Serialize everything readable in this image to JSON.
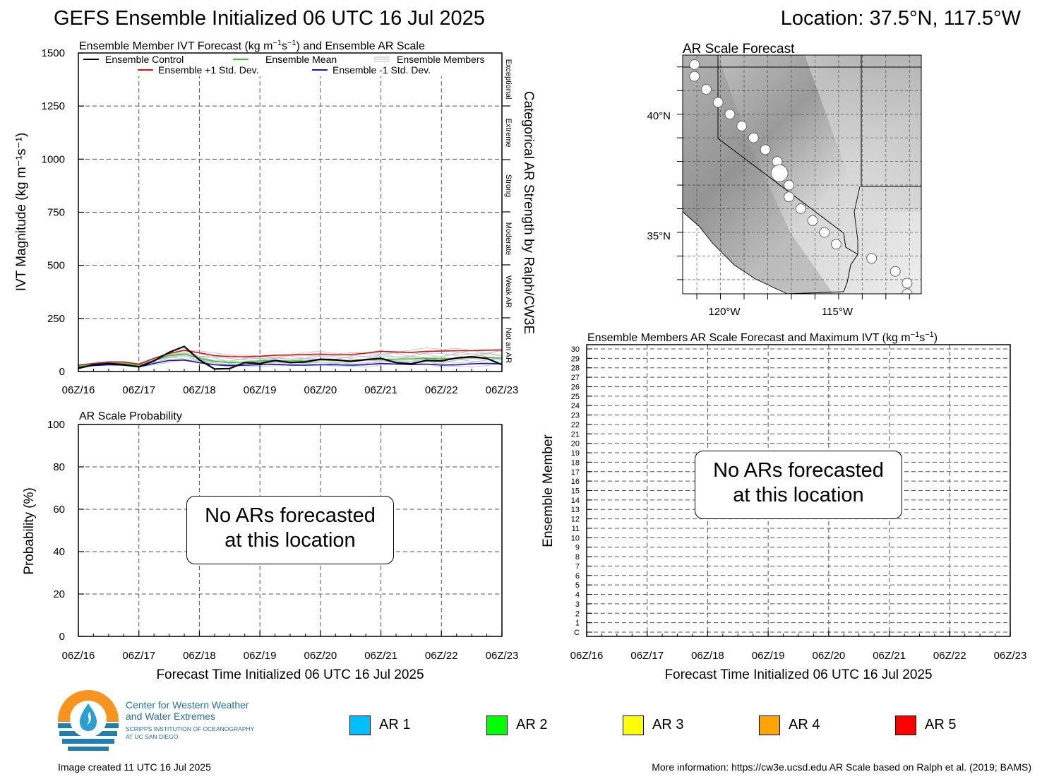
{
  "header": {
    "title": "GEFS Ensemble Initialized 06 UTC 16 Jul 2025",
    "location": "Location: 37.5°N, 117.5°W"
  },
  "x_ticks": [
    "06Z/16",
    "06Z/17",
    "06Z/18",
    "06Z/19",
    "06Z/20",
    "06Z/21",
    "06Z/22",
    "06Z/23"
  ],
  "x_axis_label": "Forecast Time Initialized 06 UTC 16 Jul 2025",
  "ivt_panel": {
    "title_main": "Ensemble Member IVT Forecast (kg m",
    "title_sup1": "−1",
    "title_mid": "s",
    "title_sup2": "−1",
    "title_end": ") and Ensemble AR Scale",
    "ylabel": "IVT Magnitude (kg m⁻¹s⁻¹)",
    "right_label": "Categorical AR Strength by Ralph/CW3E",
    "categories": [
      "Exceptional",
      "Extreme",
      "Strong",
      "Moderate",
      "Weak AR",
      "Not an AR"
    ],
    "legend": [
      {
        "label": "Ensemble Control",
        "color": "#000000"
      },
      {
        "label": "Ensemble Mean",
        "color": "#33cc33"
      },
      {
        "label": "Ensemble Members",
        "color": "#bbbbbb"
      },
      {
        "label": "Ensemble +1 Std. Dev.",
        "color": "#dd1111"
      },
      {
        "label": "Ensemble -1 Std. Dev.",
        "color": "#1111cc"
      }
    ]
  },
  "prob_panel": {
    "title": "AR Scale Probability",
    "ylabel": "Probability (%)",
    "no_ar_line1": "No ARs forecasted",
    "no_ar_line2": "at this location"
  },
  "map_panel": {
    "title": "AR Scale Forecast",
    "lat_labels": [
      "40°N",
      "35°N"
    ],
    "lon_labels": [
      "120°W",
      "115°W"
    ],
    "lat_range": [
      32.4,
      42.5
    ],
    "lon_range": [
      -121.6,
      -111.5
    ],
    "track": [
      [
        42.7,
        -121.6
      ],
      [
        42.1,
        -121.1
      ],
      [
        41.6,
        -121.1
      ],
      [
        41.05,
        -120.6
      ],
      [
        40.5,
        -120.1
      ],
      [
        40.0,
        -119.6
      ],
      [
        39.5,
        -119.1
      ],
      [
        39.0,
        -118.6
      ],
      [
        38.5,
        -118.1
      ],
      [
        38.0,
        -117.6
      ],
      [
        37.5,
        -117.5
      ],
      [
        37.0,
        -117.1
      ],
      [
        36.5,
        -117.1
      ],
      [
        36.0,
        -116.6
      ],
      [
        35.5,
        -116.1
      ],
      [
        35.0,
        -115.6
      ],
      [
        34.5,
        -115.1
      ],
      [
        33.9,
        -113.6
      ],
      [
        33.35,
        -112.6
      ],
      [
        32.85,
        -112.1
      ],
      [
        32.4,
        -112.1
      ]
    ]
  },
  "members_panel": {
    "title_main": "Ensemble Members AR Scale Forecast and Maximum IVT (kg m",
    "title_sup1": "−1",
    "title_mid": "s",
    "title_sup2": "−1",
    "title_end": ")",
    "ylabel": "Ensemble Member",
    "rows": [
      "C",
      "1",
      "2",
      "3",
      "4",
      "5",
      "6",
      "7",
      "8",
      "9",
      "10",
      "11",
      "12",
      "13",
      "14",
      "15",
      "16",
      "17",
      "18",
      "19",
      "20",
      "21",
      "22",
      "23",
      "24",
      "25",
      "26",
      "27",
      "28",
      "29",
      "30"
    ],
    "no_ar_line1": "No ARs forecasted",
    "no_ar_line2": "at this location"
  },
  "ar_legend": [
    {
      "label": "AR 1",
      "color": "#00bfff"
    },
    {
      "label": "AR 2",
      "color": "#00ff00"
    },
    {
      "label": "AR 3",
      "color": "#ffff00"
    },
    {
      "label": "AR 4",
      "color": "#ffa500"
    },
    {
      "label": "AR 5",
      "color": "#ff0000"
    }
  ],
  "logo": {
    "line1": "Center for Western Weather",
    "line2": "and Water Extremes",
    "line3": "SCRIPPS INSTITUTION OF OCEANOGRAPHY",
    "line4": "AT UC SAN DIEGO"
  },
  "footer": {
    "created": "Image created 11 UTC 16 Jul 2025",
    "info": "More information: https://cw3e.ucsd.edu AR Scale based on Ralph et al. (2019; BAMS)"
  },
  "chart_data": [
    {
      "type": "line",
      "title": "Ensemble Member IVT Forecast (kg m⁻¹s⁻¹) and Ensemble AR Scale",
      "ylabel": "IVT Magnitude (kg m⁻¹s⁻¹)",
      "xlabel": "",
      "x_unit": "forecast hours from 06 UTC 16 Jul 2025",
      "x": [
        0,
        6,
        12,
        18,
        24,
        30,
        36,
        42,
        48,
        54,
        60,
        66,
        72,
        78,
        84,
        90,
        96,
        102,
        108,
        114,
        120,
        126,
        132,
        138,
        144,
        150,
        156,
        162,
        168
      ],
      "ylim": [
        0,
        1500
      ],
      "yticks": [
        0,
        250,
        500,
        750,
        1000,
        1250,
        1500
      ],
      "grid": true,
      "legend_position": "top",
      "series": [
        {
          "name": "Ensemble Control",
          "values": [
            15,
            32,
            38,
            32,
            22,
            50,
            90,
            118,
            55,
            12,
            14,
            42,
            38,
            52,
            42,
            45,
            58,
            55,
            48,
            56,
            62,
            42,
            36,
            52,
            50,
            64,
            70,
            62,
            32
          ]
        },
        {
          "name": "Ensemble Mean",
          "values": [
            25,
            34,
            40,
            38,
            28,
            52,
            75,
            82,
            62,
            48,
            42,
            45,
            50,
            52,
            50,
            50,
            55,
            52,
            52,
            55,
            58,
            58,
            60,
            62,
            60,
            62,
            65,
            66,
            64
          ]
        },
        {
          "name": "Ensemble +1 Std. Dev.",
          "values": [
            30,
            38,
            45,
            45,
            35,
            62,
            85,
            100,
            88,
            75,
            70,
            70,
            72,
            76,
            78,
            80,
            82,
            78,
            80,
            86,
            95,
            92,
            90,
            95,
            96,
            98,
            98,
            100,
            102
          ]
        },
        {
          "name": "Ensemble -1 Std. Dev.",
          "values": [
            20,
            28,
            32,
            30,
            22,
            38,
            52,
            54,
            42,
            32,
            28,
            30,
            32,
            34,
            30,
            30,
            32,
            32,
            30,
            32,
            38,
            35,
            33,
            35,
            30,
            32,
            36,
            38,
            36
          ]
        }
      ]
    },
    {
      "type": "bar",
      "title": "AR Scale Probability",
      "ylabel": "Probability (%)",
      "ylim": [
        0,
        100
      ],
      "yticks": [
        0,
        20,
        40,
        60,
        80,
        100
      ],
      "grid": true,
      "values": []
    },
    {
      "type": "heatmap",
      "title": "Ensemble Members AR Scale Forecast and Maximum IVT (kg m⁻¹s⁻¹)",
      "ylabel": "Ensemble Member",
      "grid": true,
      "values": []
    }
  ]
}
